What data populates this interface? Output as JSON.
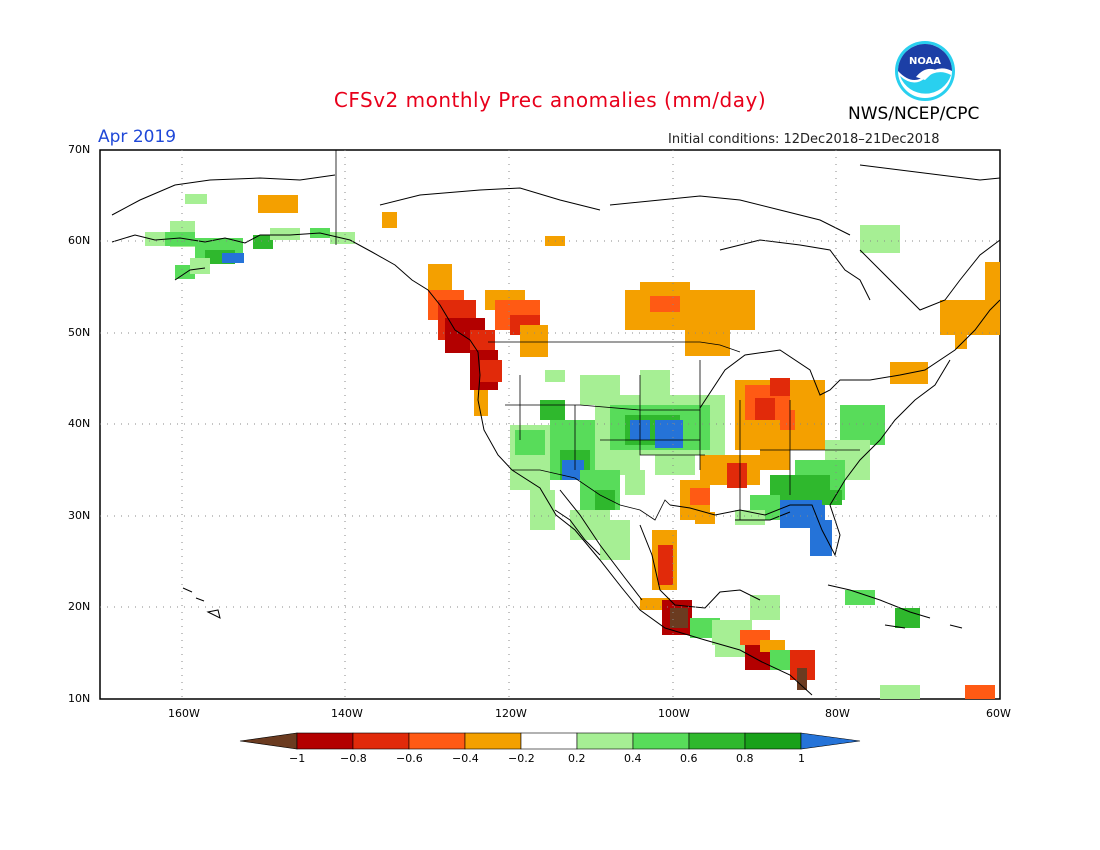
{
  "header": {
    "title": "CFSv2 monthly Prec anomalies (mm/day)",
    "month": "Apr 2019",
    "initial_conditions": "Initial conditions: 12Dec2018–21Dec2018",
    "agency": "NWS/NCEP/CPC",
    "logo_text": "NOAA"
  },
  "colors": {
    "title": "#e8001b",
    "month": "#1f48d8",
    "neg_extreme": "#6b3b20",
    "neg_1": "#b30000",
    "neg_08": "#e12a0a",
    "neg_06": "#ff5a14",
    "neg_04": "#f4a000",
    "neutral": "#ffffff",
    "pos_02": "#a6ef94",
    "pos_04": "#58dc5a",
    "pos_06": "#2fb82d",
    "pos_08": "#18a11a",
    "pos_extreme": "#2573d8"
  },
  "map": {
    "lat_labels": [
      "70N",
      "60N",
      "50N",
      "40N",
      "30N",
      "20N",
      "10N"
    ],
    "lon_labels": [
      "160W",
      "140W",
      "120W",
      "100W",
      "80W",
      "60W"
    ],
    "lat_range": [
      10,
      70
    ],
    "lon_range": [
      -170,
      -60
    ]
  },
  "colorbar": {
    "labels": [
      "−1",
      "−0.8",
      "−0.6",
      "−0.4",
      "−0.2",
      "0.2",
      "0.4",
      "0.6",
      "0.8",
      "1"
    ]
  }
}
